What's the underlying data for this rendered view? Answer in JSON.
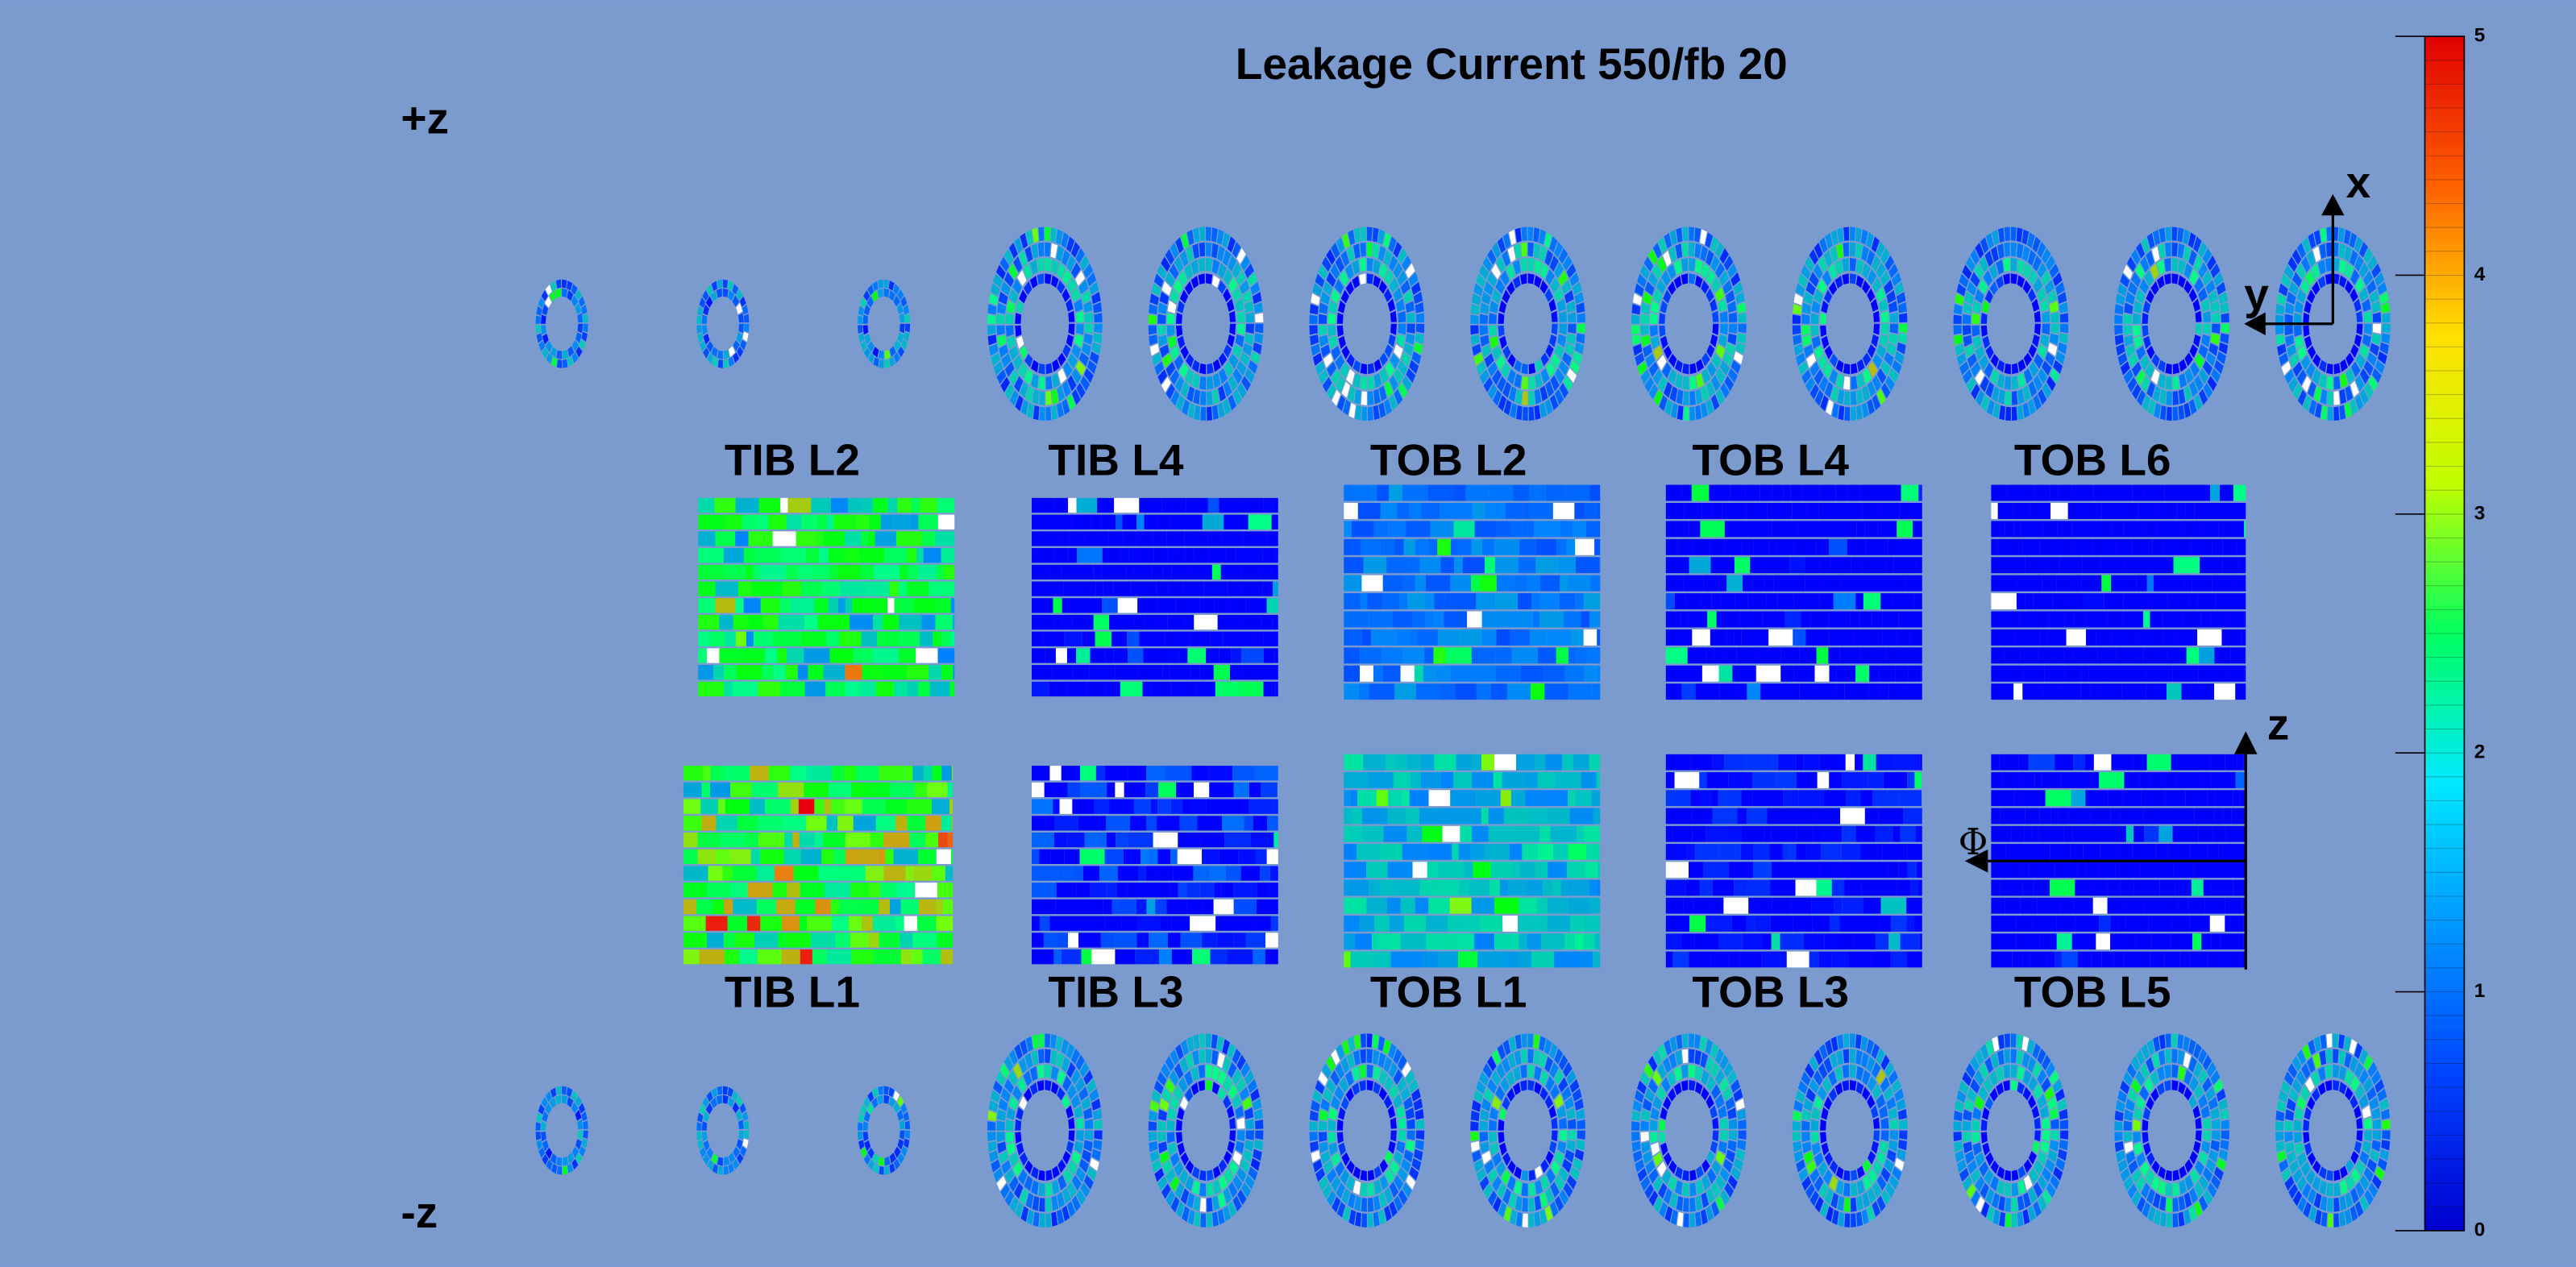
{
  "title": "Leakage Current 550/fb 20",
  "plus_z": "+z",
  "minus_z": "-z",
  "layers_top": [
    "TIB L2",
    "TIB L4",
    "TOB L2",
    "TOB L4",
    "TOB L6"
  ],
  "layers_bottom": [
    "TIB L1",
    "TIB L3",
    "TOB L1",
    "TOB L3",
    "TOB L5"
  ],
  "axes": {
    "x": "x",
    "y": "y",
    "z": "z",
    "phi": "Φ"
  },
  "colorbar": {
    "range": [
      0,
      5
    ],
    "ticks": [
      0,
      1,
      2,
      3,
      4,
      5
    ]
  }
}
